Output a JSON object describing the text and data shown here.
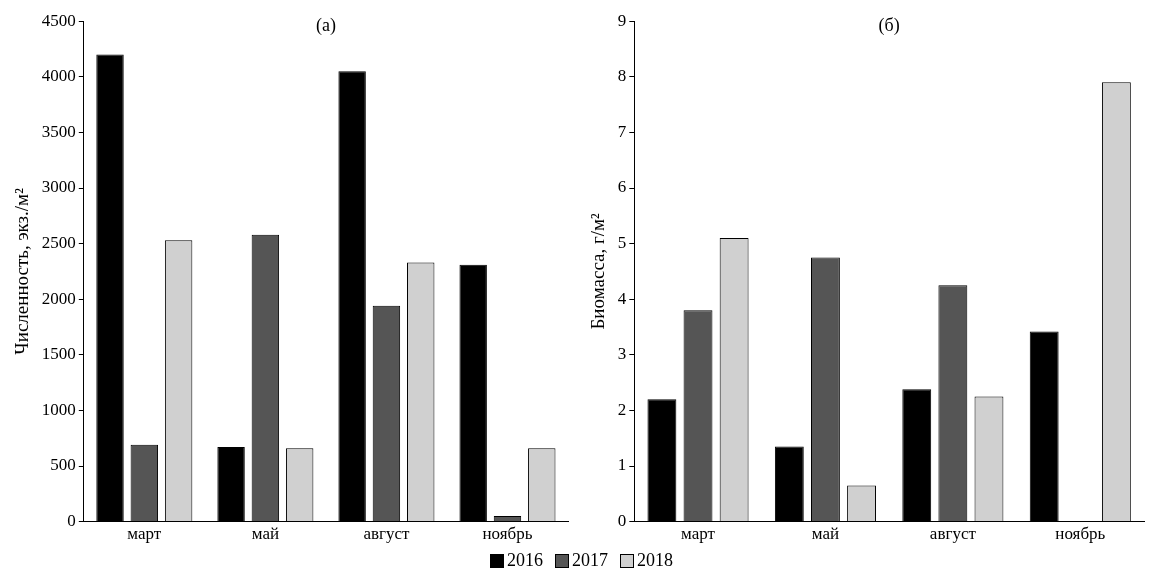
{
  "chart_data": [
    {
      "type": "bar",
      "title": "(а)",
      "ylabel": "Численность, экз./м²",
      "categories": [
        "март",
        "май",
        "август",
        "ноябрь"
      ],
      "ylim": [
        0,
        4500
      ],
      "yticks": [
        0,
        500,
        1000,
        1500,
        2000,
        2500,
        3000,
        3500,
        4000,
        4500
      ],
      "grid": false,
      "legend": "bottom",
      "series": [
        {
          "name": "2016",
          "color": "#000000",
          "values": [
            4200,
            670,
            4050,
            2310
          ]
        },
        {
          "name": "2017",
          "color": "#555555",
          "values": [
            690,
            2580,
            1940,
            50
          ]
        },
        {
          "name": "2018",
          "color": "#d0d0d0",
          "values": [
            2530,
            660,
            2330,
            660
          ]
        }
      ]
    },
    {
      "type": "bar",
      "title": "(б)",
      "ylabel": "Биомасса, г/м²",
      "categories": [
        "март",
        "май",
        "август",
        "ноябрь"
      ],
      "ylim": [
        0,
        9
      ],
      "yticks": [
        0,
        1,
        2,
        3,
        4,
        5,
        6,
        7,
        8,
        9
      ],
      "grid": false,
      "legend": "bottom",
      "series": [
        {
          "name": "2016",
          "color": "#000000",
          "values": [
            2.2,
            1.35,
            2.38,
            3.42
          ]
        },
        {
          "name": "2017",
          "color": "#555555",
          "values": [
            3.8,
            4.75,
            4.25,
            0
          ]
        },
        {
          "name": "2018",
          "color": "#d0d0d0",
          "values": [
            5.1,
            0.65,
            2.25,
            7.9
          ]
        }
      ]
    }
  ]
}
